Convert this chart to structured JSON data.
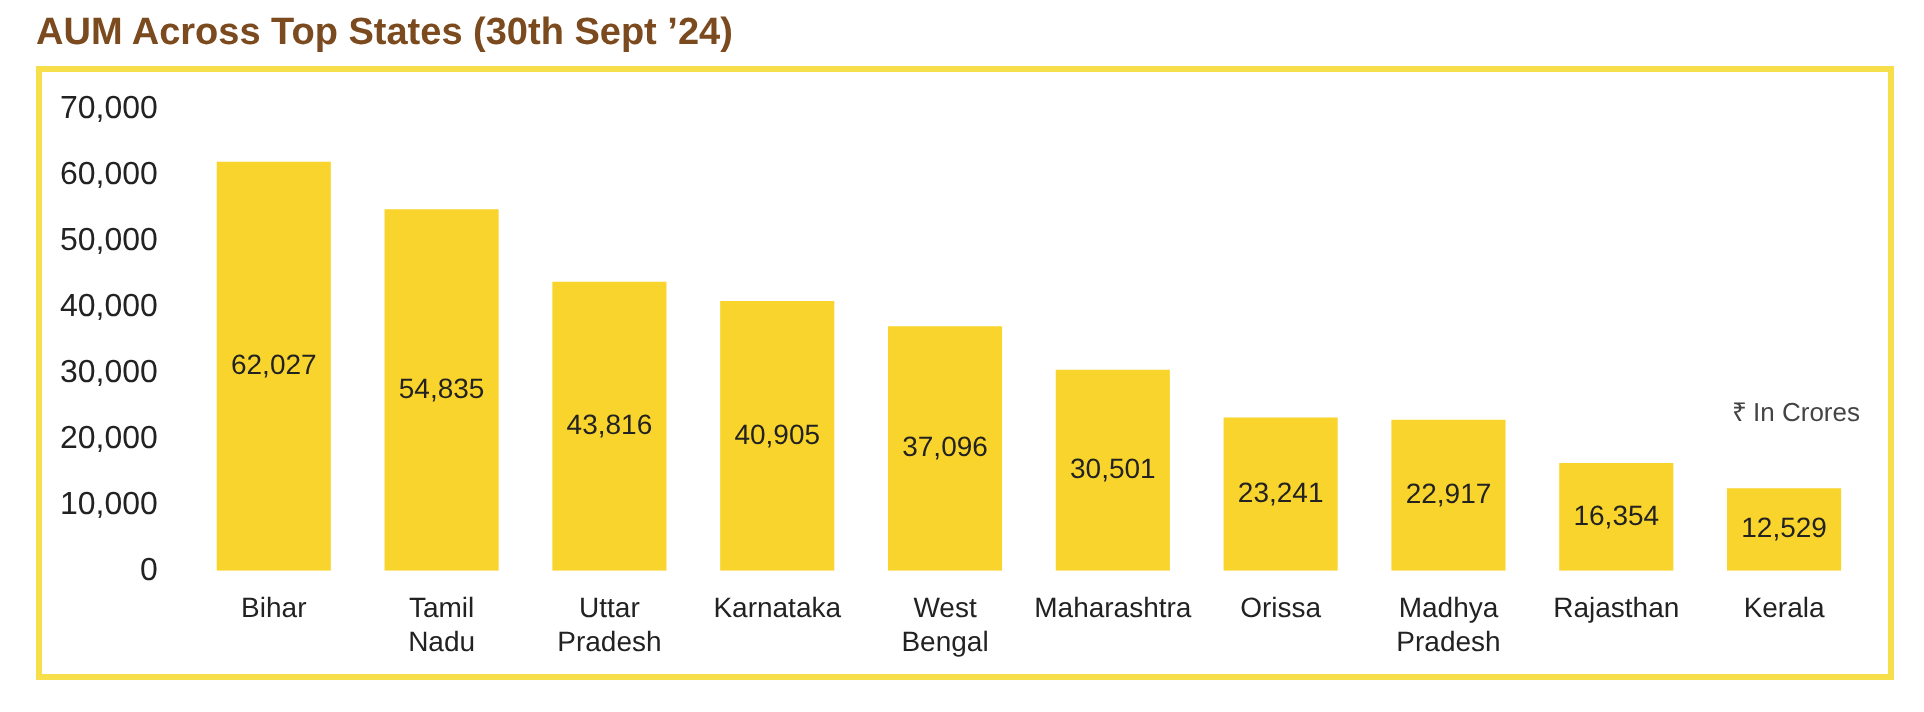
{
  "chart_data": {
    "type": "bar",
    "title": "AUM Across Top States (30th Sept ’24)",
    "categories": [
      "Bihar",
      "Tamil Nadu",
      "Uttar Pradesh",
      "Karnataka",
      "West Bengal",
      "Maharashtra",
      "Orissa",
      "Madhya Pradesh",
      "Rajasthan",
      "Kerala"
    ],
    "values": [
      62027,
      54835,
      43816,
      40905,
      37096,
      30501,
      23241,
      22917,
      16354,
      12529
    ],
    "value_labels": [
      "62,027",
      "54,835",
      "43,816",
      "40,905",
      "37,096",
      "30,501",
      "23,241",
      "22,917",
      "16,354",
      "12,529"
    ],
    "color": "#f9d42c",
    "ylim": [
      0,
      70000
    ],
    "yticks": [
      0,
      {
        "value": 10000,
        "label": "10,000"
      },
      {
        "value": 20000,
        "label": "20,000"
      },
      {
        "value": 30000,
        "label": "30,000"
      },
      {
        "value": 40000,
        "label": "40,000"
      },
      {
        "value": 50000,
        "label": "50,000"
      },
      {
        "value": 60000,
        "label": "60,000"
      },
      {
        "value": 70000,
        "label": "70,000"
      }
    ],
    "grid": false,
    "legend": false,
    "annotations": [
      "₹ In Crores"
    ]
  }
}
